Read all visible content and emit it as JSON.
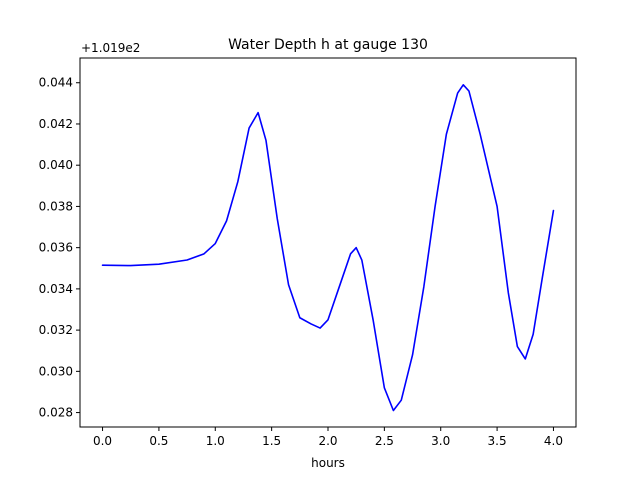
{
  "chart_data": {
    "type": "line",
    "title": "Water Depth h at gauge 130",
    "xlabel": "hours",
    "ylabel": "",
    "y_offset_label": "+1.019e2",
    "xlim": [
      -0.2,
      4.2
    ],
    "ylim": [
      0.0273,
      0.0452
    ],
    "x_ticks": [
      0.0,
      0.5,
      1.0,
      1.5,
      2.0,
      2.5,
      3.0,
      3.5,
      4.0
    ],
    "x_tick_labels": [
      "0.0",
      "0.5",
      "1.0",
      "1.5",
      "2.0",
      "2.5",
      "3.0",
      "3.5",
      "4.0"
    ],
    "y_ticks": [
      0.028,
      0.03,
      0.032,
      0.034,
      0.036,
      0.038,
      0.04,
      0.042,
      0.044
    ],
    "y_tick_labels": [
      "0.028",
      "0.030",
      "0.032",
      "0.034",
      "0.036",
      "0.038",
      "0.040",
      "0.042",
      "0.044"
    ],
    "grid": false,
    "series": [
      {
        "color": "#0000ff",
        "x": [
          0.0,
          0.25,
          0.5,
          0.75,
          0.9,
          1.0,
          1.1,
          1.2,
          1.3,
          1.38,
          1.45,
          1.55,
          1.65,
          1.75,
          1.85,
          1.93,
          2.0,
          2.1,
          2.2,
          2.25,
          2.3,
          2.4,
          2.5,
          2.58,
          2.65,
          2.75,
          2.85,
          2.95,
          3.05,
          3.15,
          3.2,
          3.25,
          3.35,
          3.5,
          3.6,
          3.68,
          3.75,
          3.82,
          3.9,
          4.0
        ],
        "y": [
          0.03515,
          0.03513,
          0.0352,
          0.0354,
          0.0357,
          0.0362,
          0.0373,
          0.0392,
          0.0418,
          0.04255,
          0.0412,
          0.0374,
          0.0342,
          0.0326,
          0.0323,
          0.0321,
          0.0325,
          0.0341,
          0.0357,
          0.036,
          0.0354,
          0.0325,
          0.0292,
          0.0281,
          0.0286,
          0.0308,
          0.0341,
          0.038,
          0.0415,
          0.0435,
          0.0439,
          0.0436,
          0.0415,
          0.038,
          0.0338,
          0.0312,
          0.0306,
          0.0318,
          0.0345,
          0.0378
        ]
      }
    ]
  }
}
